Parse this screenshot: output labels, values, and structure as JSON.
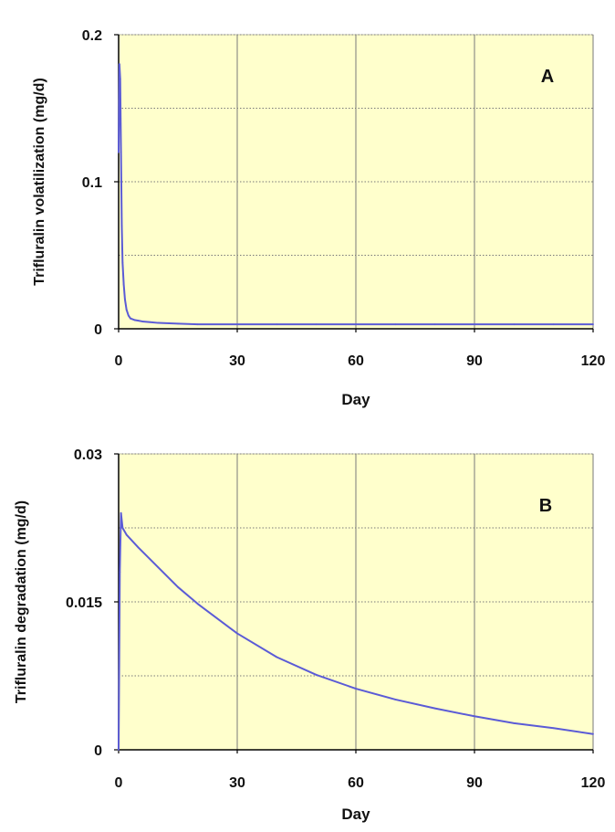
{
  "colors": {
    "plot_background": "#ffffcc",
    "line": "#5b5bd6",
    "grid": "#7a7a7a",
    "axis": "#000000"
  },
  "chart_data": [
    {
      "type": "line",
      "panel_label": "A",
      "xlabel": "Day",
      "ylabel": "Trifluralin  volatilization  (mg/d)",
      "xlim": [
        0,
        120
      ],
      "ylim": [
        0,
        0.2
      ],
      "x_ticks": [
        0,
        30,
        60,
        90,
        120
      ],
      "x_tick_labels": [
        "0",
        "30",
        "60",
        "90",
        "120"
      ],
      "y_ticks": [
        0,
        0.1,
        0.2
      ],
      "y_tick_labels": [
        "0",
        "0.1",
        "0.2"
      ],
      "y_minor_grid": [
        0.05,
        0.15
      ],
      "grid": true,
      "series": [
        {
          "x": [
            0,
            0.2,
            0.4,
            0.6,
            0.8,
            1.0,
            1.3,
            1.6,
            2.0,
            2.5,
            3,
            4,
            5,
            6,
            8,
            10,
            15,
            20,
            30,
            40,
            50,
            60,
            70,
            80,
            90,
            100,
            110,
            120
          ],
          "values": [
            0.12,
            0.18,
            0.17,
            0.12,
            0.07,
            0.045,
            0.03,
            0.02,
            0.013,
            0.009,
            0.007,
            0.006,
            0.0055,
            0.005,
            0.0045,
            0.004,
            0.0035,
            0.003,
            0.003,
            0.003,
            0.003,
            0.003,
            0.003,
            0.003,
            0.003,
            0.003,
            0.003,
            0.003
          ]
        }
      ]
    },
    {
      "type": "line",
      "panel_label": "B",
      "xlabel": "Day",
      "ylabel": "Trifluralin  degradation  (mg/d)",
      "xlim": [
        0,
        120
      ],
      "ylim": [
        0,
        0.03
      ],
      "x_ticks": [
        0,
        30,
        60,
        90,
        120
      ],
      "x_tick_labels": [
        "0",
        "30",
        "60",
        "90",
        "120"
      ],
      "y_ticks": [
        0,
        0.015,
        0.03
      ],
      "y_tick_labels": [
        "0",
        "0.015",
        "0.03"
      ],
      "y_minor_grid": [
        0.0075,
        0.0225
      ],
      "grid": true,
      "series": [
        {
          "x": [
            0,
            0.3,
            0.6,
            1,
            2,
            5,
            10,
            15,
            20,
            30,
            40,
            50,
            60,
            70,
            80,
            90,
            100,
            110,
            120
          ],
          "values": [
            0,
            0.018,
            0.024,
            0.0225,
            0.0218,
            0.0205,
            0.0185,
            0.0165,
            0.0148,
            0.0118,
            0.0094,
            0.0076,
            0.0062,
            0.0051,
            0.0042,
            0.0034,
            0.0027,
            0.0022,
            0.0016
          ]
        }
      ]
    }
  ]
}
